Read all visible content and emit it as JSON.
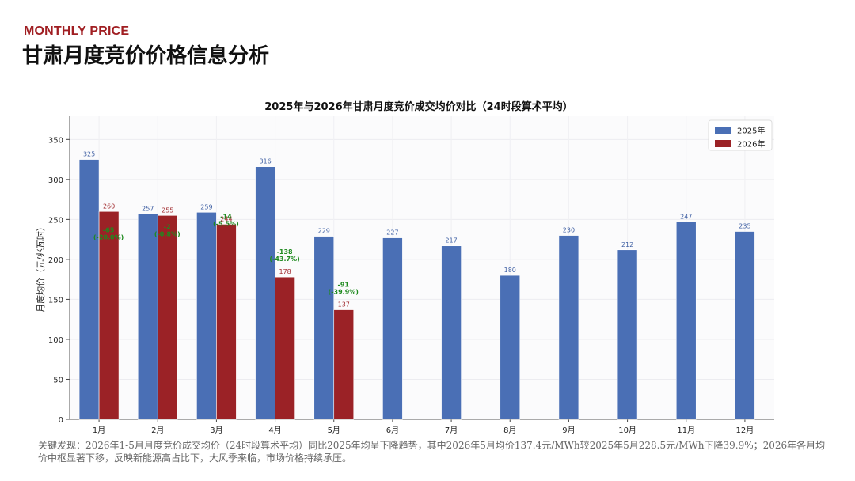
{
  "header": {
    "kicker": "MONTHLY PRICE",
    "title": "甘肃月度竞价价格信息分析"
  },
  "chart_data": {
    "type": "bar",
    "title": "2025年与2026年甘肃月度竞价成交均价对比（24时段算术平均）",
    "xlabel": "",
    "ylabel": "月度均价（元/兆瓦时）",
    "ylim": [
      0,
      380
    ],
    "yticks": [
      0,
      50,
      100,
      150,
      200,
      250,
      300,
      350
    ],
    "grid": true,
    "legend_position": "top-right",
    "categories": [
      "1月",
      "2月",
      "3月",
      "4月",
      "5月",
      "6月",
      "7月",
      "8月",
      "9月",
      "10月",
      "11月",
      "12月"
    ],
    "series": [
      {
        "name": "2025年",
        "color": "#4a6fb5",
        "label_color": "#3e5fa3",
        "values": [
          325,
          257,
          259,
          316,
          229,
          227,
          217,
          180,
          230,
          212,
          247,
          235
        ]
      },
      {
        "name": "2026年",
        "color": "#9b2226",
        "label_color": "#a0282c",
        "values": [
          260,
          255,
          244,
          178,
          137,
          null,
          null,
          null,
          null,
          null,
          null,
          null
        ]
      }
    ],
    "annotations": [
      {
        "category": "1月",
        "lines": [
          "-65",
          "(-20.0%)"
        ],
        "y": 234
      },
      {
        "category": "2月",
        "lines": [
          "-2",
          "(-0.8%)"
        ],
        "y": 238
      },
      {
        "category": "3月",
        "lines": [
          "-14",
          "(-5.5%)"
        ],
        "y": 251
      },
      {
        "category": "4月",
        "lines": [
          "-138",
          "(-43.7%)"
        ],
        "y": 207
      },
      {
        "category": "5月",
        "lines": [
          "-91",
          "(-39.9%)"
        ],
        "y": 166
      }
    ],
    "annotation_color": "#1f8a1f"
  },
  "footnote": "关键发现：2026年1-5月月度竞价成交均价（24时段算术平均）同比2025年均呈下降趋势，其中2026年5月均价137.4元/MWh较2025年5月228.5元/MWh下降39.9%；2026年各月均价中枢显著下移，反映新能源高占比下，大风季来临，市场价格持续承压。"
}
